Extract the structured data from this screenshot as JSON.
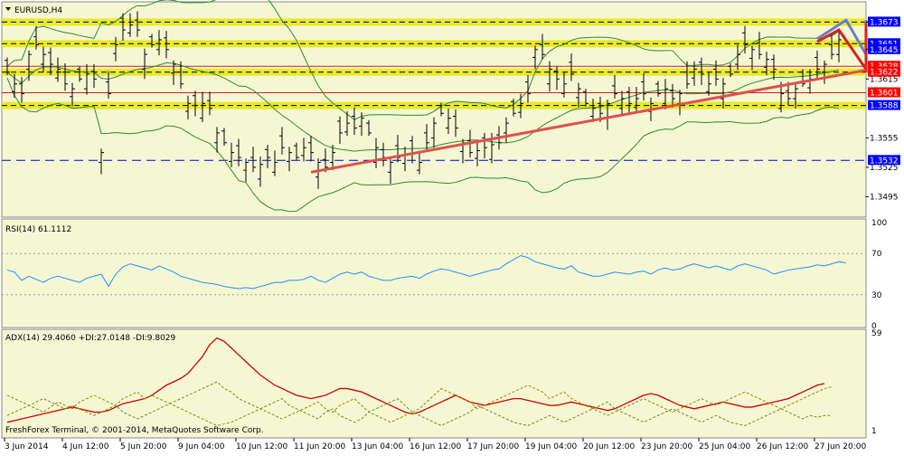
{
  "window": {
    "title": "EURUSD,H4",
    "footer": "FreshForex Terminal, © 2001-2014, MetaQuotes Software Corp."
  },
  "colors": {
    "background": "#f5f7d3",
    "candle": "#000000",
    "bollinger": "#2e8b2e",
    "resistance_fill": "#e6e60f",
    "red_line": "#cc2222",
    "trend": "#e05050",
    "blue_dash": "#0000cc",
    "rsi": "#1e90ff",
    "adx": "#cc0000",
    "plus_di": "#8b8b00",
    "minus_di": "#6b8e23",
    "axis_badge_blue": "#0000ff",
    "axis_badge_red": "#ff0000"
  },
  "chart_data": [
    {
      "type": "candlestick",
      "title": "EURUSD,H4",
      "ylim": [
        1.3476,
        1.369
      ],
      "price_ticks": [
        "1.3673",
        "1.3645",
        "1.3615",
        "1.3555",
        "1.3525",
        "1.3495"
      ],
      "x_labels": [
        "3 Jun 2014",
        "4 Jun 12:00",
        "5 Jun 20:00",
        "9 Jun 04:00",
        "10 Jun 12:00",
        "11 Jun 20:00",
        "13 Jun 04:00",
        "16 Jun 12:00",
        "17 Jun 20:00",
        "19 Jun 04:00",
        "20 Jun 12:00",
        "23 Jun 20:00",
        "25 Jun 04:00",
        "26 Jun 12:00",
        "27 Jun 20:00"
      ],
      "close": [
        1.3622,
        1.361,
        1.36,
        1.364,
        1.365,
        1.364,
        1.363,
        1.3625,
        1.361,
        1.3605,
        1.3615,
        1.362,
        1.3615,
        1.354,
        1.36,
        1.365,
        1.3665,
        1.367,
        1.3665,
        1.364,
        1.365,
        1.3655,
        1.3645,
        1.363,
        1.361,
        1.359,
        1.3588,
        1.359,
        1.3585,
        1.356,
        1.355,
        1.354,
        1.3535,
        1.353,
        1.3525,
        1.3528,
        1.3535,
        1.353,
        1.3545,
        1.354,
        1.3535,
        1.3545,
        1.354,
        1.353,
        1.3525,
        1.354,
        1.356,
        1.357,
        1.3565,
        1.3575,
        1.356,
        1.3545,
        1.3535,
        1.353,
        1.3535,
        1.3538,
        1.354,
        1.353,
        1.355,
        1.357,
        1.358,
        1.3575,
        1.3565,
        1.355,
        1.354,
        1.3542,
        1.3545,
        1.3548,
        1.355,
        1.357,
        1.358,
        1.359,
        1.36,
        1.3645,
        1.364,
        1.3625,
        1.3615,
        1.361,
        1.362,
        1.3605,
        1.359,
        1.3585,
        1.358,
        1.359,
        1.36,
        1.3595,
        1.359,
        1.3595,
        1.36,
        1.359,
        1.36,
        1.3605,
        1.3595,
        1.36,
        1.361,
        1.3625,
        1.362,
        1.361,
        1.3615,
        1.361,
        1.362,
        1.364,
        1.365,
        1.3645,
        1.364,
        1.3635,
        1.3625,
        1.36,
        1.3595,
        1.3605,
        1.361,
        1.3615,
        1.3625,
        1.363,
        1.364,
        1.3655
      ],
      "open_offset": [
        0.0012,
        -0.0008,
        0.001,
        -0.0015,
        0.0008,
        -0.001,
        0.0012,
        -0.0009
      ],
      "wick": 0.001,
      "series": [
        {
          "name": "Bollinger"
        }
      ],
      "levels": [
        {
          "value": 1.3673,
          "label": "1.3673",
          "style": "yellow-dash",
          "badge": "blue"
        },
        {
          "value": 1.3651,
          "label": "1.3651",
          "style": "yellow-dash",
          "badge": "blue"
        },
        {
          "value": 1.3645,
          "label": "1.3645",
          "style": "none",
          "badge": "blue"
        },
        {
          "value": 1.3628,
          "label": "1.3628",
          "style": "red",
          "badge": "red"
        },
        {
          "value": 1.3622,
          "label": "1.3622",
          "style": "yellow-dash",
          "badge": "red"
        },
        {
          "value": 1.3601,
          "label": "1.3601",
          "style": "red",
          "badge": "red"
        },
        {
          "value": 1.3588,
          "label": "1.3588",
          "style": "yellow-dash",
          "badge": "blue"
        },
        {
          "value": 1.3532,
          "label": "1.3532",
          "style": "blue-dash",
          "badge": "blue"
        }
      ],
      "trendline": {
        "from_index": 42,
        "from_price": 1.352,
        "to_index": 124,
        "to_price": 1.3624
      },
      "projections": [
        {
          "color": "blue",
          "points": [
            [
              112,
              1.3656
            ],
            [
              116,
              1.3675
            ],
            [
              122,
              1.364
            ],
            [
              128,
              1.3675
            ]
          ]
        },
        {
          "color": "red",
          "points": [
            [
              112,
              1.3653
            ],
            [
              115,
              1.3665
            ],
            [
              120,
              1.3625
            ],
            [
              126,
              1.3672
            ]
          ]
        }
      ]
    },
    {
      "type": "line",
      "title": "RSI(14) 61.1112",
      "ylim": [
        0,
        100
      ],
      "ticks": [
        "100",
        "70",
        "30",
        "0"
      ],
      "series": [
        {
          "values": [
            54,
            52,
            44,
            48,
            45,
            42,
            46,
            48,
            46,
            44,
            42,
            46,
            48,
            50,
            38,
            50,
            57,
            60,
            58,
            56,
            54,
            58,
            55,
            52,
            48,
            46,
            44,
            42,
            41,
            40,
            38,
            37,
            36,
            37,
            36,
            38,
            40,
            42,
            42,
            44,
            44,
            45,
            48,
            44,
            42,
            46,
            50,
            52,
            50,
            52,
            48,
            46,
            44,
            44,
            46,
            47,
            48,
            46,
            50,
            53,
            55,
            54,
            52,
            50,
            48,
            50,
            52,
            54,
            55,
            60,
            64,
            68,
            66,
            62,
            60,
            58,
            56,
            55,
            58,
            52,
            50,
            48,
            48,
            50,
            52,
            51,
            50,
            52,
            53,
            50,
            54,
            56,
            54,
            55,
            58,
            60,
            58,
            56,
            58,
            56,
            54,
            58,
            60,
            58,
            56,
            54,
            50,
            52,
            54,
            55,
            56,
            57,
            59,
            58,
            60,
            62,
            61
          ]
        }
      ]
    },
    {
      "type": "line",
      "title": "ADX(14) 29.4060 +DI:27.0148 -DI:9.8029",
      "ylim": [
        1,
        59
      ],
      "ticks": [
        "59",
        "1"
      ],
      "series": [
        {
          "values": [
            6,
            7,
            8,
            9,
            10,
            11,
            12,
            13,
            14,
            15,
            14,
            13,
            12,
            12,
            13,
            15,
            17,
            18,
            19,
            20,
            22,
            25,
            28,
            30,
            32,
            35,
            40,
            45,
            52,
            56,
            54,
            50,
            46,
            42,
            38,
            34,
            31,
            28,
            26,
            24,
            22,
            21,
            20,
            21,
            22,
            24,
            26,
            26,
            25,
            24,
            22,
            20,
            18,
            16,
            14,
            12,
            11,
            12,
            14,
            16,
            18,
            20,
            22,
            20,
            18,
            17,
            16,
            17,
            18,
            19,
            20,
            20,
            19,
            18,
            17,
            16,
            16,
            17,
            18,
            17,
            16,
            15,
            14,
            13,
            14,
            16,
            18,
            20,
            22,
            23,
            22,
            20,
            18,
            16,
            15,
            14,
            15,
            16,
            17,
            18,
            17,
            16,
            15,
            15,
            16,
            17,
            18,
            19,
            20,
            22,
            24,
            26,
            28,
            29
          ]
        },
        {
          "values": [
            10,
            12,
            14,
            16,
            14,
            12,
            15,
            18,
            16,
            14,
            18,
            20,
            22,
            20,
            18,
            16,
            20,
            22,
            24,
            20,
            22,
            20,
            18,
            16,
            14,
            12,
            10,
            8,
            6,
            4,
            5,
            6,
            8,
            10,
            12,
            14,
            12,
            10,
            8,
            10,
            12,
            14,
            16,
            18,
            14,
            12,
            16,
            18,
            20,
            16,
            12,
            10,
            8,
            6,
            8,
            10,
            12,
            14,
            18,
            22,
            26,
            24,
            22,
            20,
            18,
            14,
            16,
            18,
            20,
            22,
            24,
            26,
            28,
            26,
            24,
            20,
            22,
            24,
            20,
            18,
            16,
            14,
            12,
            10,
            12,
            14,
            16,
            18,
            20,
            18,
            16,
            14,
            12,
            14,
            16,
            18,
            20,
            18,
            16,
            18,
            20,
            22,
            24,
            22,
            20,
            18,
            16,
            14,
            16,
            18,
            20,
            22,
            24,
            26,
            27
          ]
        },
        {
          "values": [
            22,
            20,
            18,
            16,
            18,
            20,
            18,
            16,
            14,
            16,
            14,
            12,
            10,
            12,
            14,
            16,
            12,
            10,
            8,
            10,
            12,
            14,
            16,
            18,
            20,
            22,
            24,
            26,
            28,
            30,
            26,
            24,
            20,
            18,
            16,
            14,
            16,
            18,
            20,
            16,
            14,
            12,
            10,
            8,
            12,
            14,
            10,
            8,
            6,
            8,
            12,
            14,
            16,
            18,
            20,
            16,
            12,
            10,
            8,
            6,
            4,
            6,
            8,
            10,
            12,
            16,
            14,
            12,
            10,
            8,
            6,
            5,
            4,
            6,
            8,
            10,
            8,
            6,
            8,
            10,
            12,
            14,
            16,
            18,
            14,
            12,
            10,
            8,
            6,
            8,
            10,
            12,
            14,
            12,
            10,
            8,
            6,
            8,
            10,
            8,
            6,
            5,
            4,
            6,
            8,
            10,
            12,
            14,
            12,
            10,
            8,
            10,
            9,
            10,
            10
          ]
        }
      ]
    }
  ]
}
